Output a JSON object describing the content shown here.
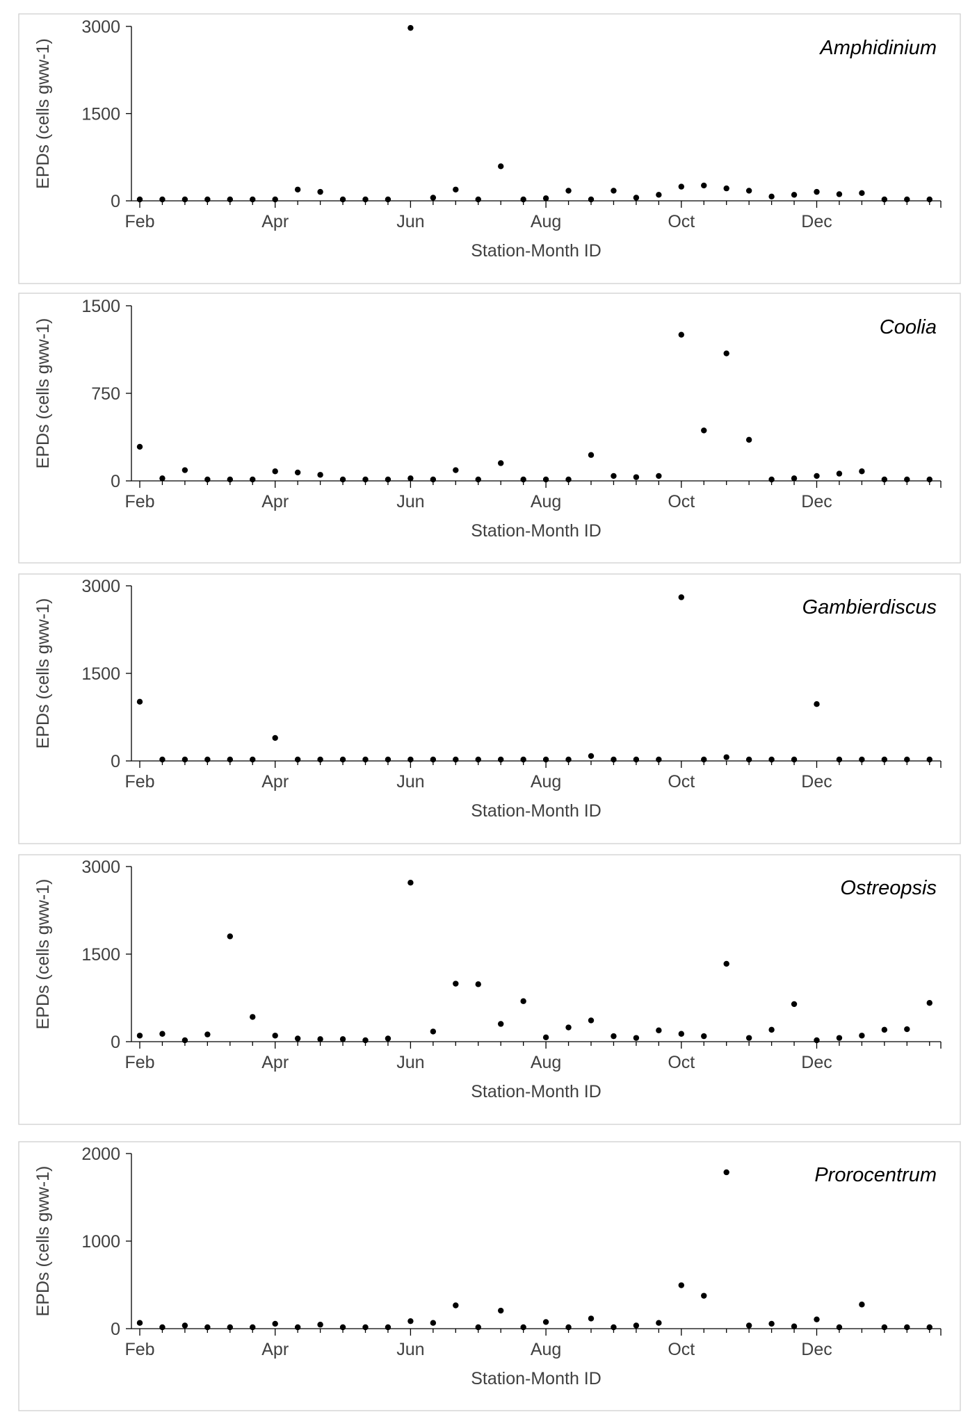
{
  "chart_data": [
    {
      "type": "scatter",
      "title": "Amphidinium",
      "xlabel": "Station-Month ID",
      "ylabel": "EPDs (cells gww-1)",
      "x_tick_labels": [
        "Feb",
        "Apr",
        "Jun",
        "Aug",
        "Oct",
        "Dec"
      ],
      "y_ticks": [
        "0",
        "1500",
        "3000"
      ],
      "ylim": [
        0,
        3000
      ],
      "values": [
        0,
        0,
        0,
        0,
        0,
        0,
        0,
        170,
        130,
        0,
        0,
        0,
        2950,
        30,
        170,
        0,
        570,
        0,
        20,
        150,
        0,
        150,
        30,
        80,
        220,
        240,
        190,
        150,
        50,
        80,
        130,
        90,
        110,
        0,
        0,
        0
      ]
    },
    {
      "type": "scatter",
      "title": "Coolia",
      "xlabel": "Station-Month ID",
      "ylabel": "EPDs (cells gww-1)",
      "x_tick_labels": [
        "Feb",
        "Apr",
        "Jun",
        "Aug",
        "Oct",
        "Dec"
      ],
      "y_ticks": [
        "0",
        "750",
        "1500"
      ],
      "ylim": [
        0,
        1500
      ],
      "values": [
        280,
        10,
        80,
        0,
        0,
        0,
        70,
        60,
        40,
        0,
        0,
        0,
        10,
        0,
        80,
        0,
        140,
        0,
        0,
        0,
        210,
        30,
        20,
        30,
        1240,
        420,
        1080,
        340,
        0,
        10,
        30,
        50,
        70,
        0,
        0,
        0
      ]
    },
    {
      "type": "scatter",
      "title": "Gambierdiscus",
      "xlabel": "Station-Month ID",
      "ylabel": "EPDs (cells gww-1)",
      "x_tick_labels": [
        "Feb",
        "Apr",
        "Jun",
        "Aug",
        "Oct",
        "Dec"
      ],
      "y_ticks": [
        "0",
        "1500",
        "3000"
      ],
      "ylim": [
        0,
        3000
      ],
      "values": [
        990,
        0,
        0,
        0,
        0,
        0,
        370,
        0,
        0,
        0,
        0,
        0,
        0,
        0,
        0,
        0,
        0,
        0,
        0,
        0,
        60,
        0,
        0,
        0,
        2780,
        0,
        40,
        0,
        0,
        0,
        950,
        0,
        0,
        0,
        0,
        0
      ]
    },
    {
      "type": "scatter",
      "title": "Ostreopsis",
      "xlabel": "Station-Month ID",
      "ylabel": "EPDs (cells gww-1)",
      "x_tick_labels": [
        "Feb",
        "Apr",
        "Jun",
        "Aug",
        "Oct",
        "Dec"
      ],
      "y_ticks": [
        "0",
        "1500",
        "3000"
      ],
      "ylim": [
        0,
        3000
      ],
      "values": [
        80,
        110,
        0,
        100,
        1780,
        400,
        80,
        30,
        20,
        20,
        0,
        30,
        2700,
        150,
        970,
        960,
        280,
        670,
        50,
        220,
        340,
        70,
        40,
        170,
        110,
        70,
        1310,
        40,
        180,
        620,
        0,
        40,
        80,
        180,
        190,
        640
      ]
    },
    {
      "type": "scatter",
      "title": "Prorocentrum",
      "xlabel": "Station-Month ID",
      "ylabel": "EPDs (cells gww-1)",
      "x_tick_labels": [
        "Feb",
        "Apr",
        "Jun",
        "Aug",
        "Oct",
        "Dec"
      ],
      "y_ticks": [
        "0",
        "1000",
        "2000"
      ],
      "ylim": [
        0,
        2000
      ],
      "values": [
        50,
        0,
        20,
        0,
        0,
        0,
        40,
        0,
        30,
        0,
        0,
        0,
        70,
        50,
        250,
        0,
        190,
        0,
        60,
        0,
        100,
        0,
        20,
        50,
        480,
        360,
        1770,
        20,
        40,
        10,
        90,
        0,
        260,
        0,
        0,
        0
      ]
    }
  ]
}
